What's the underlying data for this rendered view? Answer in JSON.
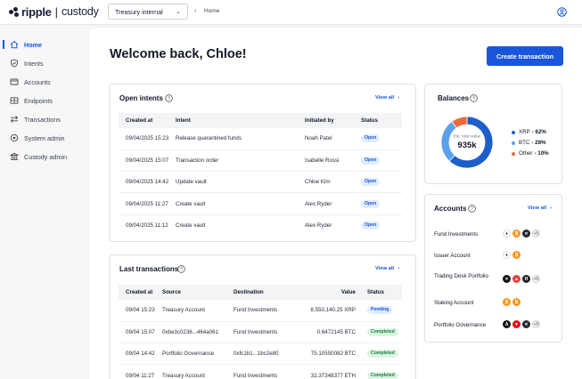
{
  "brand": {
    "name": "ripple",
    "product": "custody"
  },
  "header": {
    "workspace": "Treasury internal",
    "breadcrumb": "Home"
  },
  "sidebar": {
    "items": [
      {
        "label": "Home",
        "icon": "home-icon",
        "active": true
      },
      {
        "label": "Intents",
        "icon": "shield-icon"
      },
      {
        "label": "Accounts",
        "icon": "wallet-icon"
      },
      {
        "label": "Endpoints",
        "icon": "endpoint-icon"
      },
      {
        "label": "Transactions",
        "icon": "transfer-icon"
      },
      {
        "label": "System admin",
        "icon": "gear-icon"
      },
      {
        "label": "Custody admin",
        "icon": "bank-icon"
      }
    ]
  },
  "main": {
    "welcome": "Welcome back, Chloe!",
    "create_button": "Create transaction"
  },
  "open_intents": {
    "title": "Open intents",
    "view_all": "View all",
    "columns": [
      "Created at",
      "Intent",
      "Initiated by",
      "Status"
    ],
    "rows": [
      {
        "created": "09/04/2025 15:23",
        "intent": "Release quarantined funds",
        "by": "Noah Patel",
        "status": "Open"
      },
      {
        "created": "09/04/2025 15:07",
        "intent": "Transaction order",
        "by": "Isabelle Rossi",
        "status": "Open"
      },
      {
        "created": "09/04/2025 14:42",
        "intent": "Update vault",
        "by": "Chloe Kim",
        "status": "Open"
      },
      {
        "created": "09/04/2025 11:27",
        "intent": "Create vault",
        "by": "Alex Ryder",
        "status": "Open"
      },
      {
        "created": "09/04/2025 11:12",
        "intent": "Create vault",
        "by": "Alex Ryder",
        "status": "Open"
      }
    ]
  },
  "last_transactions": {
    "title": "Last transactions",
    "view_all": "View all",
    "columns": [
      "Created at",
      "Source",
      "Destination",
      "Value",
      "Status"
    ],
    "rows": [
      {
        "created": "09/04 15:23",
        "source": "Treasury Account",
        "destination": "Fund Investments",
        "value": "8,550,140.25 XRP",
        "status": "Pending"
      },
      {
        "created": "09/04 15:07",
        "source": "0xbe3c0236...464a061",
        "destination": "Fund Investments",
        "value": "0.6472145 BTC",
        "status": "Completed"
      },
      {
        "created": "09/04 14:42",
        "source": "Portfolio Governance",
        "destination": "0xfc1b1...1bc2e80",
        "value": "75.10550082 BTC",
        "status": "Completed"
      },
      {
        "created": "09/04 11:27",
        "source": "Treasury Account",
        "destination": "Fund Investments",
        "value": "32.37348377 ETH",
        "status": "Completed"
      }
    ]
  },
  "balances": {
    "title": "Balances",
    "center_label": "Est. total value",
    "center_value": "935k",
    "slices": [
      {
        "name": "XRP",
        "pct_label": "62%",
        "value": 62,
        "color": "#1d5fc9"
      },
      {
        "name": "BTC",
        "pct_label": "28%",
        "value": 28,
        "color": "#5aa0ec"
      },
      {
        "name": "Other",
        "pct_label": "10%",
        "value": 10,
        "color": "#ef6a3a"
      }
    ]
  },
  "accounts": {
    "title": "Accounts",
    "view_all": "View all",
    "rows": [
      {
        "name": "Fund Investments",
        "coins": [
          "eth",
          "btc",
          "xrp"
        ],
        "more": "+5"
      },
      {
        "name": "Issuer Account",
        "coins": [
          "eth",
          "btc"
        ],
        "more": ""
      },
      {
        "name": "Trading Desk Portfolio",
        "coins": [
          "x",
          "avax",
          "hbar"
        ],
        "more": "+5"
      },
      {
        "name": "Staking Account",
        "coins": [
          "btc",
          "btc"
        ],
        "more": ""
      },
      {
        "name": "Portfolio Governance",
        "coins": [
          "algo",
          "trx",
          "xrp"
        ],
        "more": "+5"
      }
    ]
  }
}
